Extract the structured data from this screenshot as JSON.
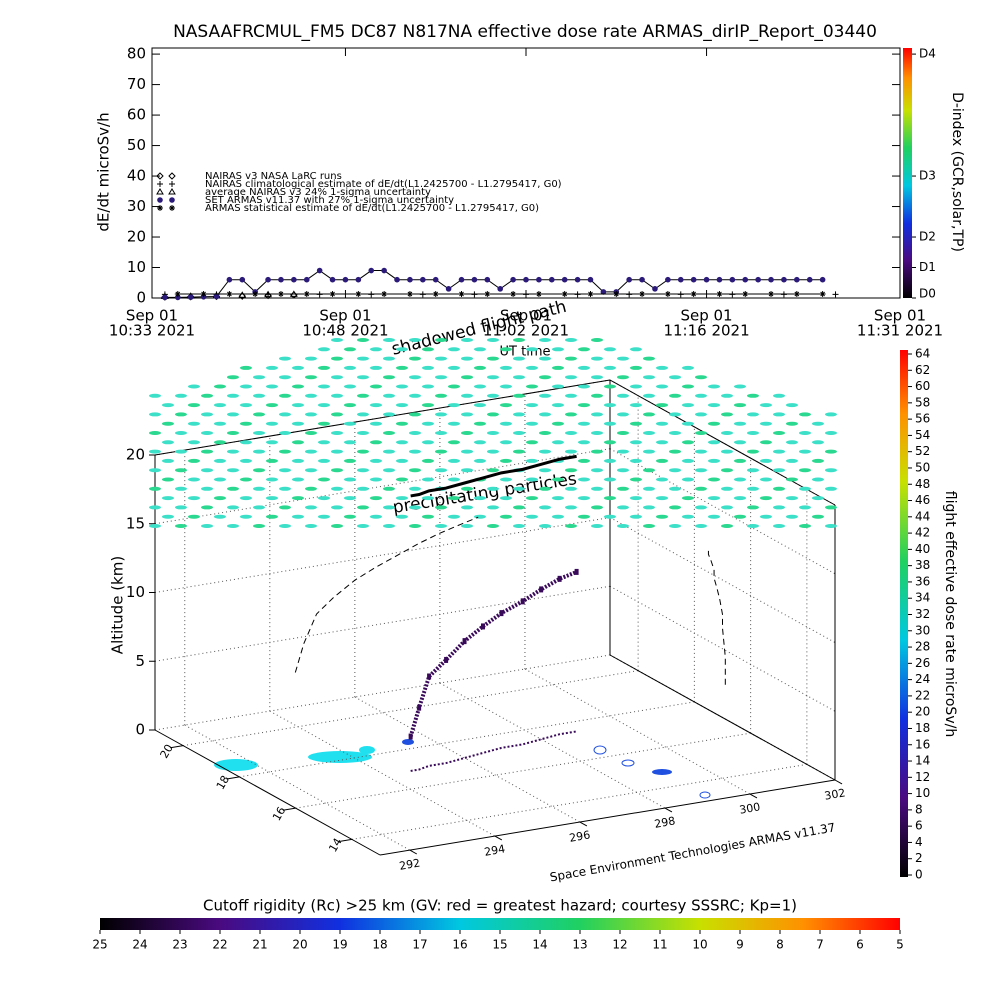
{
  "chart_data": [
    {
      "type": "line",
      "title": "NASAAFRCMUL_FM5 DC87 N817NA effective dose rate ARMAS_dirIP_Report_03440",
      "ylabel": "dE/dt microSv/h",
      "xlabel": "UT time",
      "ylim": [
        0,
        82
      ],
      "yticks": [
        0,
        10,
        20,
        30,
        40,
        50,
        60,
        70,
        80
      ],
      "xlim": [
        "2021-09-01 10:33",
        "2021-09-01 11:31"
      ],
      "xticks": [
        {
          "value": "2021-09-01 10:33",
          "label": [
            "Sep 01",
            "10:33 2021"
          ]
        },
        {
          "value": "2021-09-01 10:48",
          "label": [
            "Sep 01",
            "10:48 2021"
          ]
        },
        {
          "value": "2021-09-01 11:02",
          "label": [
            "Sep 01",
            "11:02 2021"
          ]
        },
        {
          "value": "2021-09-01 11:16",
          "label": [
            "Sep 01",
            "11:16 2021"
          ]
        },
        {
          "value": "2021-09-01 11:31",
          "label": [
            "Sep 01",
            "11:31 2021"
          ]
        }
      ],
      "x": [
        "2021-09-01 10:34",
        "2021-09-01 10:35",
        "2021-09-01 10:36",
        "2021-09-01 10:37",
        "2021-09-01 10:38",
        "2021-09-01 10:39",
        "2021-09-01 10:40",
        "2021-09-01 10:41",
        "2021-09-01 10:42",
        "2021-09-01 10:43",
        "2021-09-01 10:44",
        "2021-09-01 10:45",
        "2021-09-01 10:46",
        "2021-09-01 10:47",
        "2021-09-01 10:48",
        "2021-09-01 10:49",
        "2021-09-01 10:50",
        "2021-09-01 10:51",
        "2021-09-01 10:52",
        "2021-09-01 10:53",
        "2021-09-01 10:54",
        "2021-09-01 10:55",
        "2021-09-01 10:56",
        "2021-09-01 10:57",
        "2021-09-01 10:58",
        "2021-09-01 10:59",
        "2021-09-01 11:00",
        "2021-09-01 11:01",
        "2021-09-01 11:02",
        "2021-09-01 11:03",
        "2021-09-01 11:04",
        "2021-09-01 11:05",
        "2021-09-01 11:06",
        "2021-09-01 11:07",
        "2021-09-01 11:08",
        "2021-09-01 11:09",
        "2021-09-01 11:10",
        "2021-09-01 11:11",
        "2021-09-01 11:12",
        "2021-09-01 11:13",
        "2021-09-01 11:14",
        "2021-09-01 11:15",
        "2021-09-01 11:16",
        "2021-09-01 11:17",
        "2021-09-01 11:18",
        "2021-09-01 11:19",
        "2021-09-01 11:20",
        "2021-09-01 11:21",
        "2021-09-01 11:22",
        "2021-09-01 11:23",
        "2021-09-01 11:24",
        "2021-09-01 11:25"
      ],
      "series": [
        {
          "name": "NAIRAS v3 NASA LaRC runs",
          "marker": "diamond",
          "color": "#000000",
          "line": false,
          "x": [
            "2021-09-01 10:34",
            "2021-09-01 10:36",
            "2021-09-01 10:38",
            "2021-09-01 10:40",
            "2021-09-01 10:42",
            "2021-09-01 10:44"
          ],
          "values": [
            0.3,
            0.4,
            0.5,
            0.6,
            0.8,
            1.0
          ]
        },
        {
          "name": "NAIRAS climatological estimate of dE/dt(L1.2425700 - L1.2795417, G0)",
          "marker": "plus",
          "color": "#000000",
          "line": false,
          "x": [
            "2021-09-01 10:34",
            "2021-09-01 10:38",
            "2021-09-01 10:42",
            "2021-09-01 10:46",
            "2021-09-01 10:50",
            "2021-09-01 10:54",
            "2021-09-01 10:58",
            "2021-09-01 11:02",
            "2021-09-01 11:06",
            "2021-09-01 11:10",
            "2021-09-01 11:14",
            "2021-09-01 11:18",
            "2021-09-01 11:22",
            "2021-09-01 11:26"
          ],
          "values": [
            1.2,
            1.2,
            1.2,
            1.2,
            1.2,
            1.2,
            1.2,
            1.2,
            1.2,
            1.2,
            1.2,
            1.2,
            1.2,
            1.2
          ]
        },
        {
          "name": "average NAIRAS v3 24% 1-sigma uncertainty",
          "marker": "triangle",
          "color": "#000000",
          "line": false,
          "x": [
            "2021-09-01 10:34",
            "2021-09-01 10:36",
            "2021-09-01 10:38",
            "2021-09-01 10:40",
            "2021-09-01 10:42",
            "2021-09-01 10:44"
          ],
          "values": [
            0.5,
            0.6,
            0.8,
            0.9,
            1.1,
            1.2
          ]
        },
        {
          "name": "SET ARMAS v11.37 with 27% 1-sigma uncertainty",
          "marker": "circle",
          "color": "#2b1a7a",
          "line": true,
          "values": [
            0.2,
            0.2,
            0.3,
            0.4,
            0.5,
            6,
            6,
            2,
            6,
            6,
            6,
            6,
            9,
            6,
            6,
            6,
            9,
            9,
            6,
            6,
            6,
            6,
            3,
            6,
            6,
            6,
            3,
            6,
            6,
            6,
            6,
            6,
            6,
            6,
            2,
            2,
            6,
            6,
            3,
            6,
            6,
            6,
            6,
            6,
            6,
            6,
            6,
            6,
            6,
            6,
            6,
            6
          ]
        },
        {
          "name": "ARMAS statistical estimate of dE/dt(L1.2425700 - L1.2795417, G0)",
          "marker": "asterisk",
          "color": "#000000",
          "line": true,
          "x": [
            "2021-09-01 10:35",
            "2021-09-01 10:37",
            "2021-09-01 10:39",
            "2021-09-01 10:41",
            "2021-09-01 10:43",
            "2021-09-01 10:45",
            "2021-09-01 10:47",
            "2021-09-01 10:49",
            "2021-09-01 10:51",
            "2021-09-01 10:53",
            "2021-09-01 10:55",
            "2021-09-01 10:57",
            "2021-09-01 10:59",
            "2021-09-01 11:01",
            "2021-09-01 11:03",
            "2021-09-01 11:05",
            "2021-09-01 11:07",
            "2021-09-01 11:09",
            "2021-09-01 11:11",
            "2021-09-01 11:13",
            "2021-09-01 11:15",
            "2021-09-01 11:17",
            "2021-09-01 11:19",
            "2021-09-01 11:21",
            "2021-09-01 11:23",
            "2021-09-01 11:25"
          ],
          "values": [
            1.3,
            1.3,
            1.3,
            1.3,
            1.3,
            1.3,
            1.3,
            1.3,
            1.3,
            1.3,
            1.3,
            1.3,
            1.3,
            1.3,
            1.3,
            1.3,
            1.3,
            1.3,
            1.3,
            1.3,
            1.3,
            1.3,
            1.3,
            1.3,
            1.3,
            1.3
          ]
        }
      ],
      "colorbar": {
        "label": "D-index (GCR,solar,TP)",
        "ticks": [
          {
            "value": 0,
            "label": "D0"
          },
          {
            "value": 10,
            "label": "D1"
          },
          {
            "value": 20,
            "label": "D2"
          },
          {
            "value": 40,
            "label": "D3"
          },
          {
            "value": 80,
            "label": "D4"
          }
        ]
      }
    },
    {
      "type": "scatter3d",
      "annotations": [
        "shadowed flight path",
        "precipitating particles"
      ],
      "zlabel": "Altitude (km)",
      "zlim": [
        0,
        20
      ],
      "zticks": [
        0,
        5,
        10,
        15,
        20
      ],
      "ylim": [
        13,
        21
      ],
      "yticks": [
        14,
        16,
        18,
        20
      ],
      "xlim": [
        291.3,
        302
      ],
      "xticks": [
        292,
        294,
        296,
        298,
        300,
        302
      ],
      "credit": "Space Environment Technologies ARMAS v11.37",
      "flight_path": {
        "color": "#3a0a5a",
        "lon": [
          294.6,
          294.8,
          295.1,
          295.5,
          296.0,
          296.5,
          297.0,
          297.5,
          298.0,
          298.5,
          298.9
        ],
        "lat": [
          16.9,
          16.9,
          17.0,
          17.0,
          17.1,
          17.2,
          17.3,
          17.3,
          17.4,
          17.5,
          17.5
        ],
        "alt": [
          2.5,
          4.5,
          6.5,
          7.5,
          8.5,
          9.2,
          9.8,
          10.4,
          10.9,
          11.3,
          11.6
        ]
      },
      "colorbar": {
        "label": "flight effective dose rate microSv/h",
        "lim": [
          0,
          64
        ],
        "ticks": [
          0,
          2,
          4,
          6,
          8,
          10,
          12,
          14,
          16,
          18,
          20,
          22,
          24,
          26,
          28,
          30,
          32,
          34,
          36,
          38,
          40,
          42,
          44,
          46,
          48,
          50,
          52,
          54,
          56,
          58,
          60,
          62,
          64
        ]
      },
      "cutoff_colorbar": {
        "label": "Cutoff rigidity (Rc) >25 km (GV: red = greatest hazard; courtesy SSSRC; Kp=1)",
        "lim": [
          25,
          5
        ],
        "ticks": [
          25,
          24,
          23,
          22,
          21,
          20,
          19,
          18,
          17,
          16,
          15,
          14,
          13,
          12,
          11,
          10,
          9,
          8,
          7,
          6,
          5
        ]
      }
    }
  ]
}
